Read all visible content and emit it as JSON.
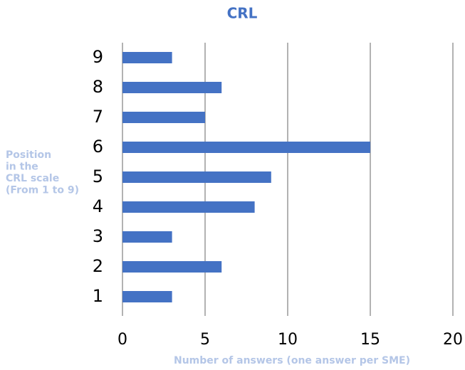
{
  "chart_data": {
    "type": "bar",
    "orientation": "horizontal",
    "title": "CRL",
    "ylabel": [
      "Position",
      "in the",
      "CRL scale",
      "(From 1 to 9)"
    ],
    "xlabel": "Number of answers (one answer per SME)",
    "categories": [
      "1",
      "2",
      "3",
      "4",
      "5",
      "6",
      "7",
      "8",
      "9"
    ],
    "values": [
      3,
      6,
      3,
      8,
      9,
      15,
      5,
      6,
      3
    ],
    "color": "#4472c4",
    "xlim": [
      0,
      20
    ],
    "xticks": [
      0,
      5,
      10,
      15,
      20
    ],
    "grid": true
  }
}
